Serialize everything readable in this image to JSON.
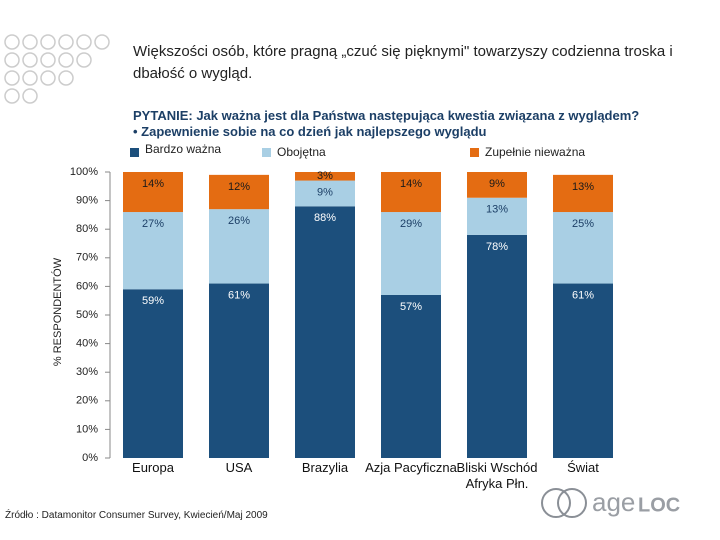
{
  "chart_data": {
    "type": "stacked-bar",
    "title": "Większości osób, które pragną „czuć się pięknymi\" towarzyszy codzienna troska i dbałość o wygląd.",
    "question": "PYTANIE: Jak ważna jest dla Państwa następująca kwestia związana z wyglądem?",
    "question_item": "• Zapewnienie sobie na co dzień jak najlepszego wyglądu",
    "y_label": "% RESPONDENTÓW",
    "source": "Źródło : Datamonitor Consumer Survey, Kwiecień/Maj 2009",
    "logo": [
      "age",
      "LOC"
    ],
    "categories": [
      "Europa",
      "USA",
      "Brazylia",
      "Azja Pacyficzna",
      "Bliski Wschód Afryka Płn.",
      "Świat"
    ],
    "series": [
      {
        "name": "Bardzo ważna",
        "color": "#1c4f7c",
        "label_color": "#ffffff",
        "values": [
          59,
          61,
          88,
          57,
          78,
          61
        ],
        "value_labels": [
          "59%",
          "61%",
          "88%",
          "57%",
          "78%",
          "61%"
        ]
      },
      {
        "name": "Obojętna",
        "color": "#a9cfe4",
        "label_color": "#1c3f66",
        "values": [
          27,
          26,
          9,
          29,
          13,
          25
        ],
        "value_labels": [
          "27%",
          "26%",
          "9%",
          "29%",
          "13%",
          "25%"
        ]
      },
      {
        "name": "Zupełnie nieważna",
        "color": "#e46c12",
        "label_color": "#1a1a1a",
        "values": [
          14,
          12,
          3,
          14,
          9,
          13
        ],
        "value_labels": [
          "14%",
          "12%",
          "3%",
          "14%",
          "9%",
          "13%"
        ]
      }
    ],
    "ylim": [
      0,
      100
    ],
    "yticks": [
      {
        "value": 0,
        "label": "0%"
      },
      {
        "value": 10,
        "label": "10%"
      },
      {
        "value": 20,
        "label": "20%"
      },
      {
        "value": 30,
        "label": "30%"
      },
      {
        "value": 40,
        "label": "40%"
      },
      {
        "value": 50,
        "label": "50%"
      },
      {
        "value": 60,
        "label": "60%"
      },
      {
        "value": 70,
        "label": "70%"
      },
      {
        "value": 80,
        "label": "80%"
      },
      {
        "value": 90,
        "label": "90%"
      },
      {
        "value": 100,
        "label": "100%"
      }
    ]
  }
}
